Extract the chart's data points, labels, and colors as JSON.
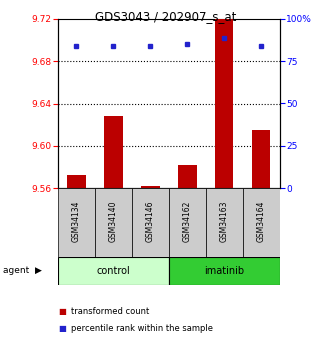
{
  "title": "GDS3043 / 202907_s_at",
  "categories": [
    "GSM34134",
    "GSM34140",
    "GSM34146",
    "GSM34162",
    "GSM34163",
    "GSM34164"
  ],
  "bar_values": [
    9.572,
    9.628,
    9.562,
    9.582,
    9.72,
    9.615
  ],
  "percentile_values": [
    84,
    84,
    84,
    85,
    89,
    84
  ],
  "ylim_left": [
    9.56,
    9.72
  ],
  "ylim_right": [
    0,
    100
  ],
  "yticks_left": [
    9.56,
    9.6,
    9.64,
    9.68,
    9.72
  ],
  "yticks_right": [
    0,
    25,
    50,
    75,
    100
  ],
  "ytick_labels_right": [
    "0",
    "25",
    "50",
    "75",
    "100%"
  ],
  "grid_values": [
    9.6,
    9.64,
    9.68
  ],
  "bar_color": "#bb0000",
  "dot_color": "#2222cc",
  "control_color": "#ccffcc",
  "imatinib_color": "#33cc33",
  "control_label": "control",
  "imatinib_label": "imatinib",
  "legend_red": "transformed count",
  "legend_blue": "percentile rank within the sample",
  "bar_bottom": 9.56,
  "bar_width": 0.5
}
